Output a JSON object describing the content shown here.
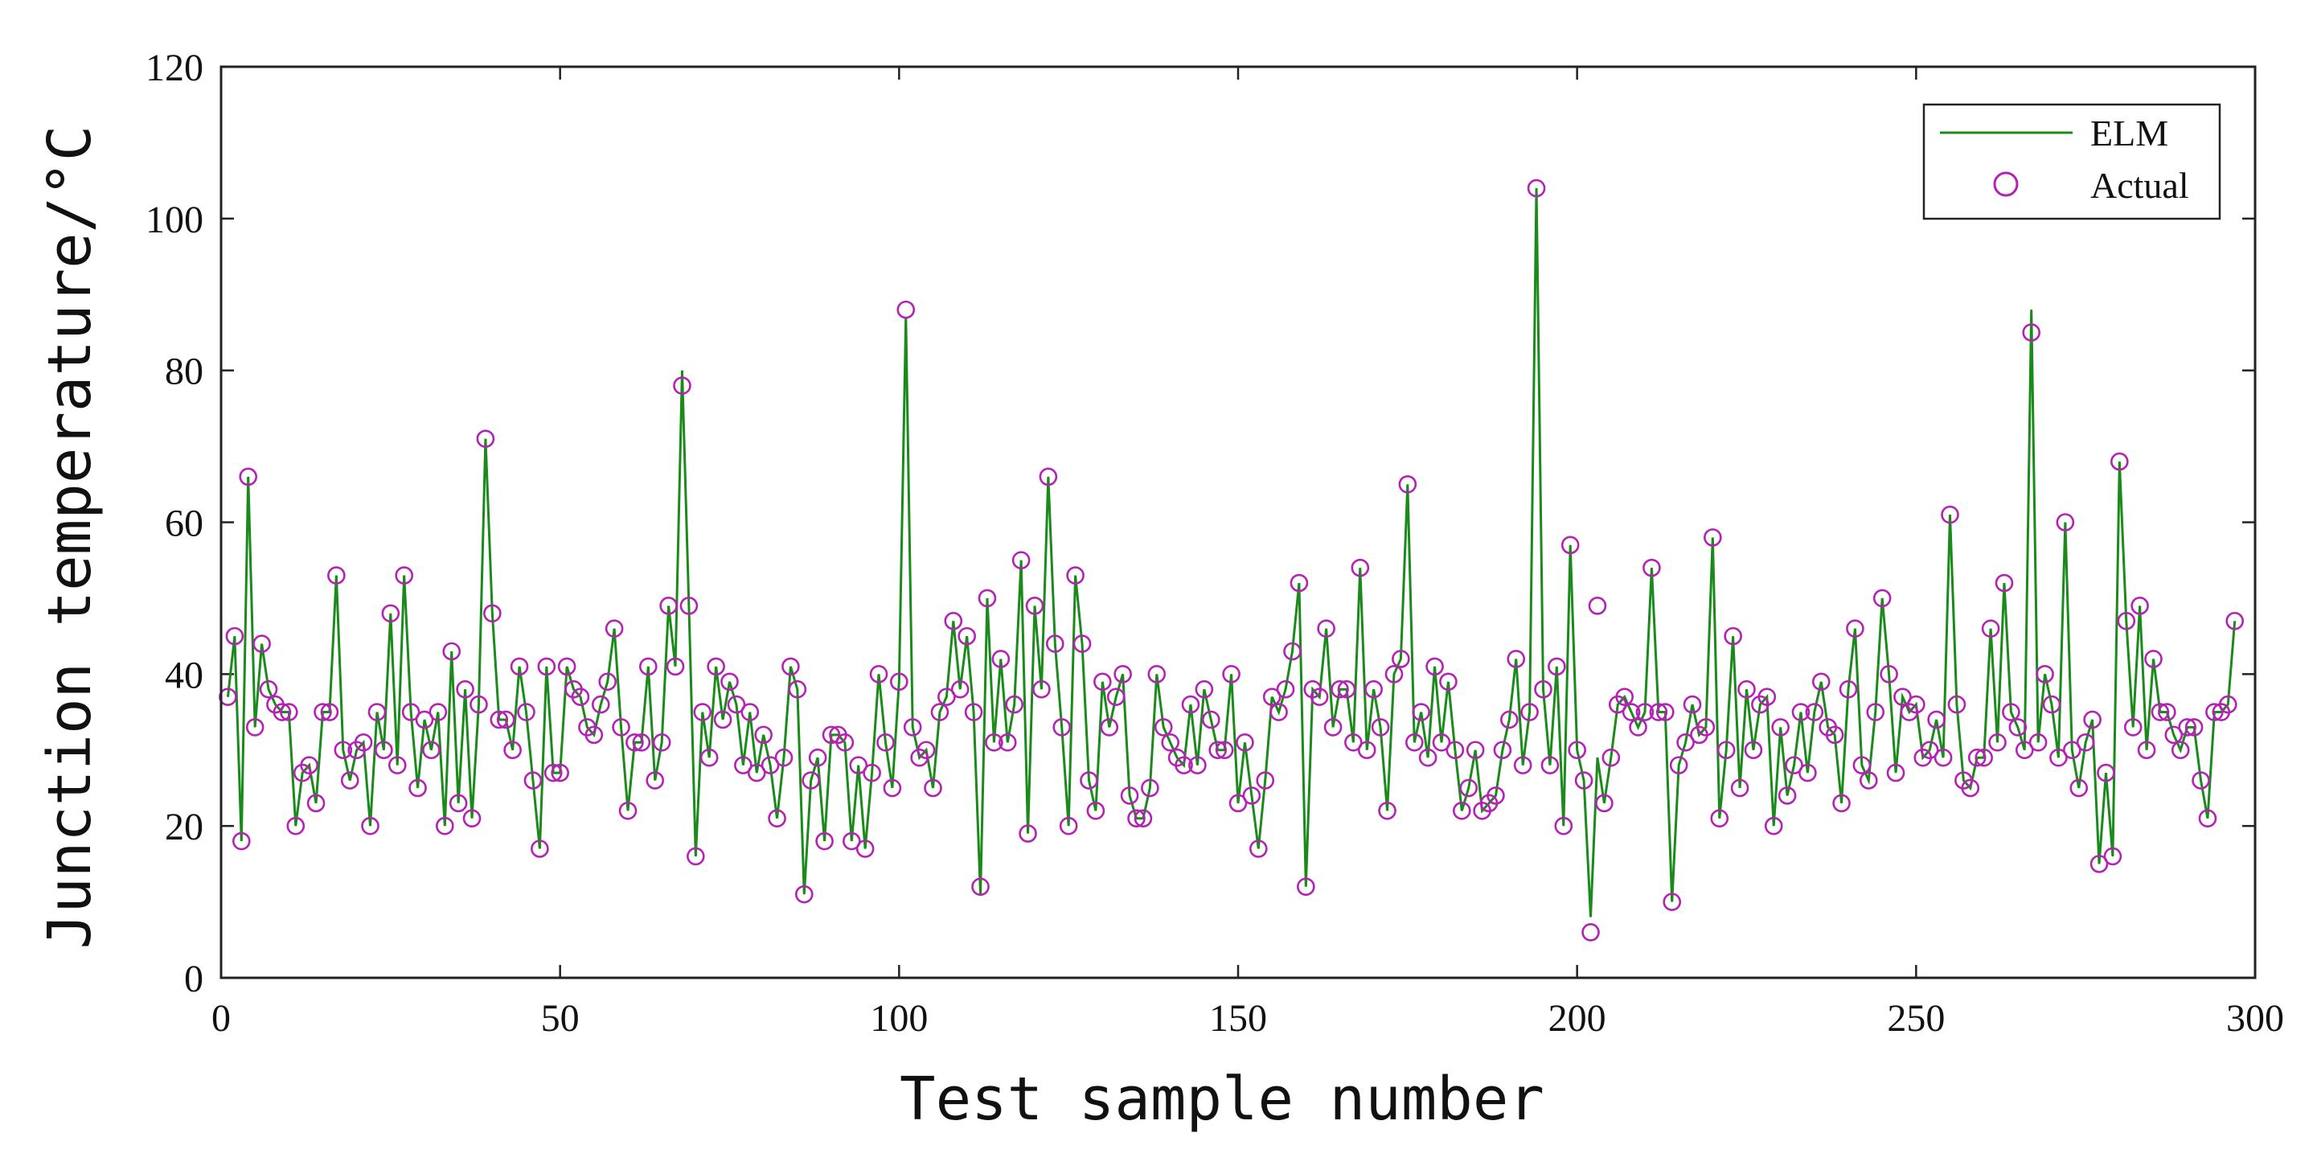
{
  "chart_data": {
    "type": "line",
    "title": "",
    "xlabel": "Test sample number",
    "ylabel": "Junction temperature/°C",
    "xlim": [
      0,
      300
    ],
    "ylim": [
      0,
      120
    ],
    "x_ticks": [
      0,
      50,
      100,
      150,
      200,
      250,
      300
    ],
    "y_ticks": [
      0,
      20,
      40,
      60,
      80,
      100,
      120
    ],
    "grid": false,
    "legend_position": "top-right",
    "series": [
      {
        "name": "ELM",
        "style": "line",
        "color": "#1a8a1a",
        "values": [
          37,
          45,
          18,
          66,
          33,
          44,
          38,
          36,
          35,
          35,
          20,
          27,
          28,
          23,
          35,
          35,
          53,
          30,
          26,
          30,
          31,
          20,
          35,
          30,
          48,
          28,
          53,
          35,
          25,
          34,
          30,
          35,
          20,
          43,
          23,
          38,
          21,
          36,
          71,
          48,
          34,
          34,
          30,
          41,
          35,
          26,
          17,
          41,
          27,
          27,
          41,
          38,
          37,
          33,
          32,
          36,
          39,
          46,
          33,
          22,
          31,
          31,
          41,
          26,
          31,
          49,
          41,
          80,
          49,
          16,
          35,
          29,
          41,
          34,
          39,
          36,
          28,
          35,
          27,
          32,
          28,
          21,
          29,
          41,
          38,
          11,
          26,
          29,
          18,
          32,
          32,
          31,
          18,
          28,
          17,
          27,
          40,
          31,
          25,
          39,
          87,
          33,
          29,
          30,
          25,
          35,
          37,
          47,
          38,
          45,
          35,
          11,
          50,
          31,
          42,
          31,
          36,
          55,
          19,
          49,
          38,
          66,
          44,
          33,
          20,
          53,
          44,
          26,
          22,
          39,
          33,
          37,
          40,
          24,
          21,
          21,
          25,
          40,
          33,
          31,
          29,
          28,
          36,
          28,
          38,
          34,
          30,
          30,
          40,
          23,
          31,
          24,
          17,
          26,
          37,
          35,
          38,
          43,
          52,
          12,
          38,
          37,
          46,
          33,
          38,
          38,
          31,
          54,
          30,
          38,
          33,
          22,
          40,
          42,
          65,
          31,
          35,
          29,
          41,
          31,
          39,
          30,
          22,
          25,
          30,
          22,
          23,
          24,
          30,
          34,
          42,
          28,
          35,
          104,
          38,
          28,
          41,
          20,
          57,
          30,
          26,
          8,
          29,
          23,
          29,
          36,
          37,
          35,
          33,
          35,
          54,
          35,
          35,
          10,
          28,
          31,
          36,
          32,
          33,
          58,
          21,
          30,
          45,
          25,
          38,
          30,
          36,
          37,
          20,
          33,
          24,
          28,
          35,
          27,
          35,
          39,
          33,
          32,
          23,
          38,
          46,
          28,
          26,
          35,
          50,
          40,
          27,
          37,
          35,
          36,
          29,
          30,
          34,
          29,
          61,
          36,
          26,
          25,
          29,
          29,
          46,
          31,
          52,
          35,
          33,
          30,
          88,
          31,
          40,
          36,
          29,
          60,
          30,
          25,
          31,
          34,
          15,
          27,
          16,
          68,
          47,
          33,
          49,
          30,
          42,
          35,
          35,
          32,
          30,
          33,
          33,
          26,
          21,
          35,
          35,
          36,
          47
        ]
      },
      {
        "name": "Actual",
        "style": "markers",
        "marker": "circle-open",
        "color": "#b422b4",
        "values": [
          37,
          45,
          18,
          66,
          33,
          44,
          38,
          36,
          35,
          35,
          20,
          27,
          28,
          23,
          35,
          35,
          53,
          30,
          26,
          30,
          31,
          20,
          35,
          30,
          48,
          28,
          53,
          35,
          25,
          34,
          30,
          35,
          20,
          43,
          23,
          38,
          21,
          36,
          71,
          48,
          34,
          34,
          30,
          41,
          35,
          26,
          17,
          41,
          27,
          27,
          41,
          38,
          37,
          33,
          32,
          36,
          39,
          46,
          33,
          22,
          31,
          31,
          41,
          26,
          31,
          49,
          41,
          78,
          49,
          16,
          35,
          29,
          41,
          34,
          39,
          36,
          28,
          35,
          27,
          32,
          28,
          21,
          29,
          41,
          38,
          11,
          26,
          29,
          18,
          32,
          32,
          31,
          18,
          28,
          17,
          27,
          40,
          31,
          25,
          39,
          88,
          33,
          29,
          30,
          25,
          35,
          37,
          47,
          38,
          45,
          35,
          12,
          50,
          31,
          42,
          31,
          36,
          55,
          19,
          49,
          38,
          66,
          44,
          33,
          20,
          53,
          44,
          26,
          22,
          39,
          33,
          37,
          40,
          24,
          21,
          21,
          25,
          40,
          33,
          31,
          29,
          28,
          36,
          28,
          38,
          34,
          30,
          30,
          40,
          23,
          31,
          24,
          17,
          26,
          37,
          35,
          38,
          43,
          52,
          12,
          38,
          37,
          46,
          33,
          38,
          38,
          31,
          54,
          30,
          38,
          33,
          22,
          40,
          42,
          65,
          31,
          35,
          29,
          41,
          31,
          39,
          30,
          22,
          25,
          30,
          22,
          23,
          24,
          30,
          34,
          42,
          28,
          35,
          104,
          38,
          28,
          41,
          20,
          57,
          30,
          26,
          6,
          49,
          23,
          29,
          36,
          37,
          35,
          33,
          35,
          54,
          35,
          35,
          10,
          28,
          31,
          36,
          32,
          33,
          58,
          21,
          30,
          45,
          25,
          38,
          30,
          36,
          37,
          20,
          33,
          24,
          28,
          35,
          27,
          35,
          39,
          33,
          32,
          23,
          38,
          46,
          28,
          26,
          35,
          50,
          40,
          27,
          37,
          35,
          36,
          29,
          30,
          34,
          29,
          61,
          36,
          26,
          25,
          29,
          29,
          46,
          31,
          52,
          35,
          33,
          30,
          85,
          31,
          40,
          36,
          29,
          60,
          30,
          25,
          31,
          34,
          15,
          27,
          16,
          68,
          47,
          33,
          49,
          30,
          42,
          35,
          35,
          32,
          30,
          33,
          33,
          26,
          21,
          35,
          35,
          36,
          47
        ]
      }
    ]
  }
}
